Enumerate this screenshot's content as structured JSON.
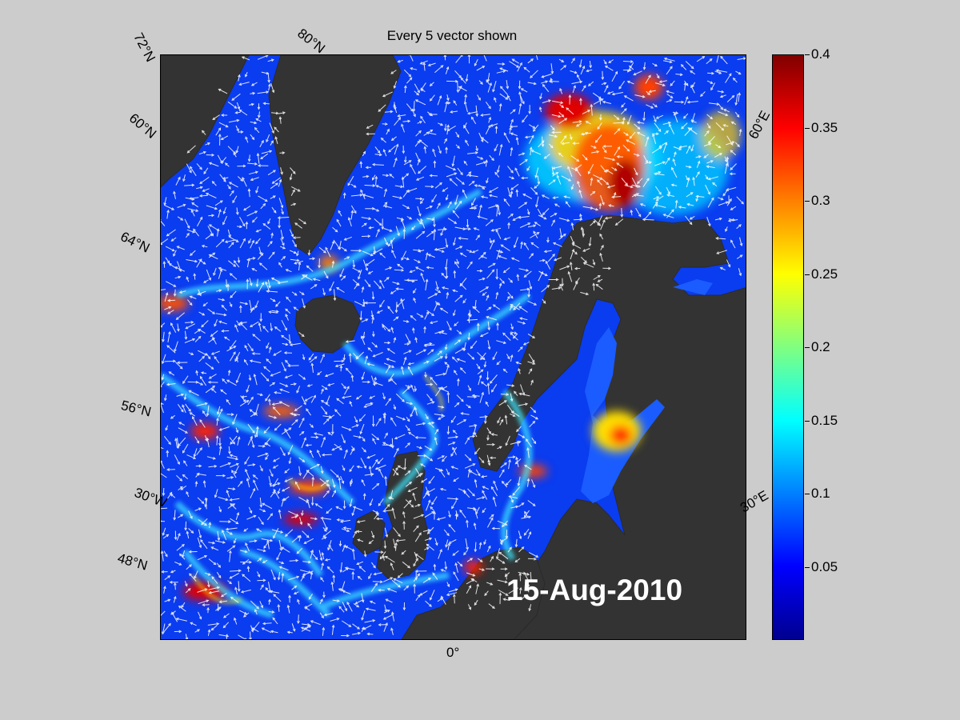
{
  "figure": {
    "title": "Every 5 vector shown",
    "date_stamp": "15-Aug-2010",
    "lat_labels": [
      "72°N",
      "80°N",
      "60°N",
      "64°N",
      "56°N",
      "48°N"
    ],
    "lon_labels": [
      "30°W",
      "0°",
      "30°E",
      "60°E"
    ]
  },
  "colorbar": {
    "ticks": [
      "0.4",
      "0.35",
      "0.3",
      "0.25",
      "0.2",
      "0.15",
      "0.1",
      "0.05"
    ],
    "range": [
      0,
      0.4
    ],
    "colors": [
      "#00008f",
      "#0000ff",
      "#0080ff",
      "#00ffff",
      "#80ff80",
      "#ffff00",
      "#ff8000",
      "#ff0000",
      "#800000"
    ]
  },
  "map": {
    "land_color": "#333333",
    "ocean_base_color": "#0a3cf0",
    "vector_color": "#ffffff"
  }
}
